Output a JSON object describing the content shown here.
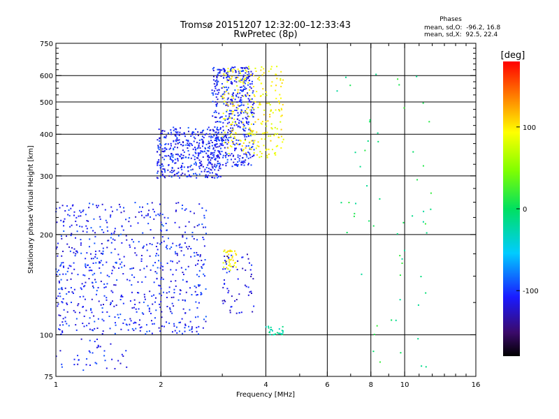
{
  "chart_data": {
    "type": "scatter",
    "title": "Tromsø 20151207 12:32:00–12:33:43",
    "subtitle": "RwPretec (8p)",
    "xlabel": "Frequency [MHz]",
    "ylabel": "Stationary phase Virtual Height [km]",
    "x_scale": "log",
    "y_scale": "log",
    "xlim": [
      1,
      16
    ],
    "ylim": [
      75,
      750
    ],
    "x_ticks": [
      1,
      2,
      4,
      6,
      8,
      10,
      16
    ],
    "y_ticks": [
      75,
      100,
      200,
      300,
      400,
      500,
      600,
      750
    ],
    "x_tick_labels": [
      "1",
      "2",
      "4",
      "6",
      "8",
      "10",
      "16"
    ],
    "y_tick_labels": [
      "75",
      "100",
      "200",
      "300",
      "400",
      "500",
      "600",
      "750"
    ],
    "x_minor_ticks": [
      3,
      5,
      7,
      9,
      11,
      12,
      13,
      14,
      15
    ],
    "y_minor_ticks": [
      125,
      150,
      175,
      225,
      250,
      275,
      325,
      350,
      375,
      425,
      450,
      475,
      525,
      550,
      575,
      625,
      650,
      675,
      700,
      725
    ],
    "grid_x": [
      2,
      4,
      6,
      8,
      10
    ],
    "grid_y": [
      100,
      200,
      300,
      400,
      500,
      600
    ],
    "phases_header": "Phases",
    "phases_stats": [
      "mean, sd,O:  -96.2, 16.8",
      "mean, sd,X:  92.5, 22.4"
    ],
    "colorbar": {
      "label": "[deg]",
      "range": [
        -180,
        180
      ],
      "ticks": [
        100,
        0,
        -100
      ],
      "tick_labels": [
        "100",
        "0",
        "-100"
      ]
    },
    "series": [
      {
        "kind": "o-mode-F-layer",
        "f_range": [
          1.95,
          3.0
        ],
        "h_range": [
          295,
          420
        ],
        "phase": -100,
        "count": 420
      },
      {
        "kind": "o-mode-F-upper",
        "f_range": [
          2.8,
          3.7
        ],
        "h_range": [
          320,
          640
        ],
        "phase": -100,
        "count": 480
      },
      {
        "kind": "x-mode-F-layer",
        "f_range": [
          3.0,
          4.5
        ],
        "h_range": [
          340,
          640
        ],
        "phase": 95,
        "count": 260
      },
      {
        "kind": "o-mode-E-layer",
        "f_range": [
          1.0,
          2.7
        ],
        "h_range": [
          100,
          250
        ],
        "phase": -100,
        "count": 700
      },
      {
        "kind": "low-spread",
        "f_range": [
          1.0,
          1.6
        ],
        "h_range": [
          78,
          98
        ],
        "phase": -100,
        "count": 40
      },
      {
        "kind": "x-mode-patch",
        "f_range": [
          3.0,
          3.3
        ],
        "h_range": [
          155,
          180
        ],
        "phase": 95,
        "count": 40
      },
      {
        "kind": "mid-patch",
        "f_range": [
          3.0,
          3.7
        ],
        "h_range": [
          115,
          175
        ],
        "phase": -110,
        "count": 60
      },
      {
        "kind": "near-4MHz",
        "f_range": [
          4.0,
          4.5
        ],
        "h_range": [
          100,
          106
        ],
        "phase": -20,
        "count": 25
      },
      {
        "kind": "scattered-high-freq",
        "f_range": [
          6.3,
          12.0
        ],
        "h_range": [
          78,
          650
        ],
        "phase": 0,
        "count": 60
      }
    ]
  }
}
